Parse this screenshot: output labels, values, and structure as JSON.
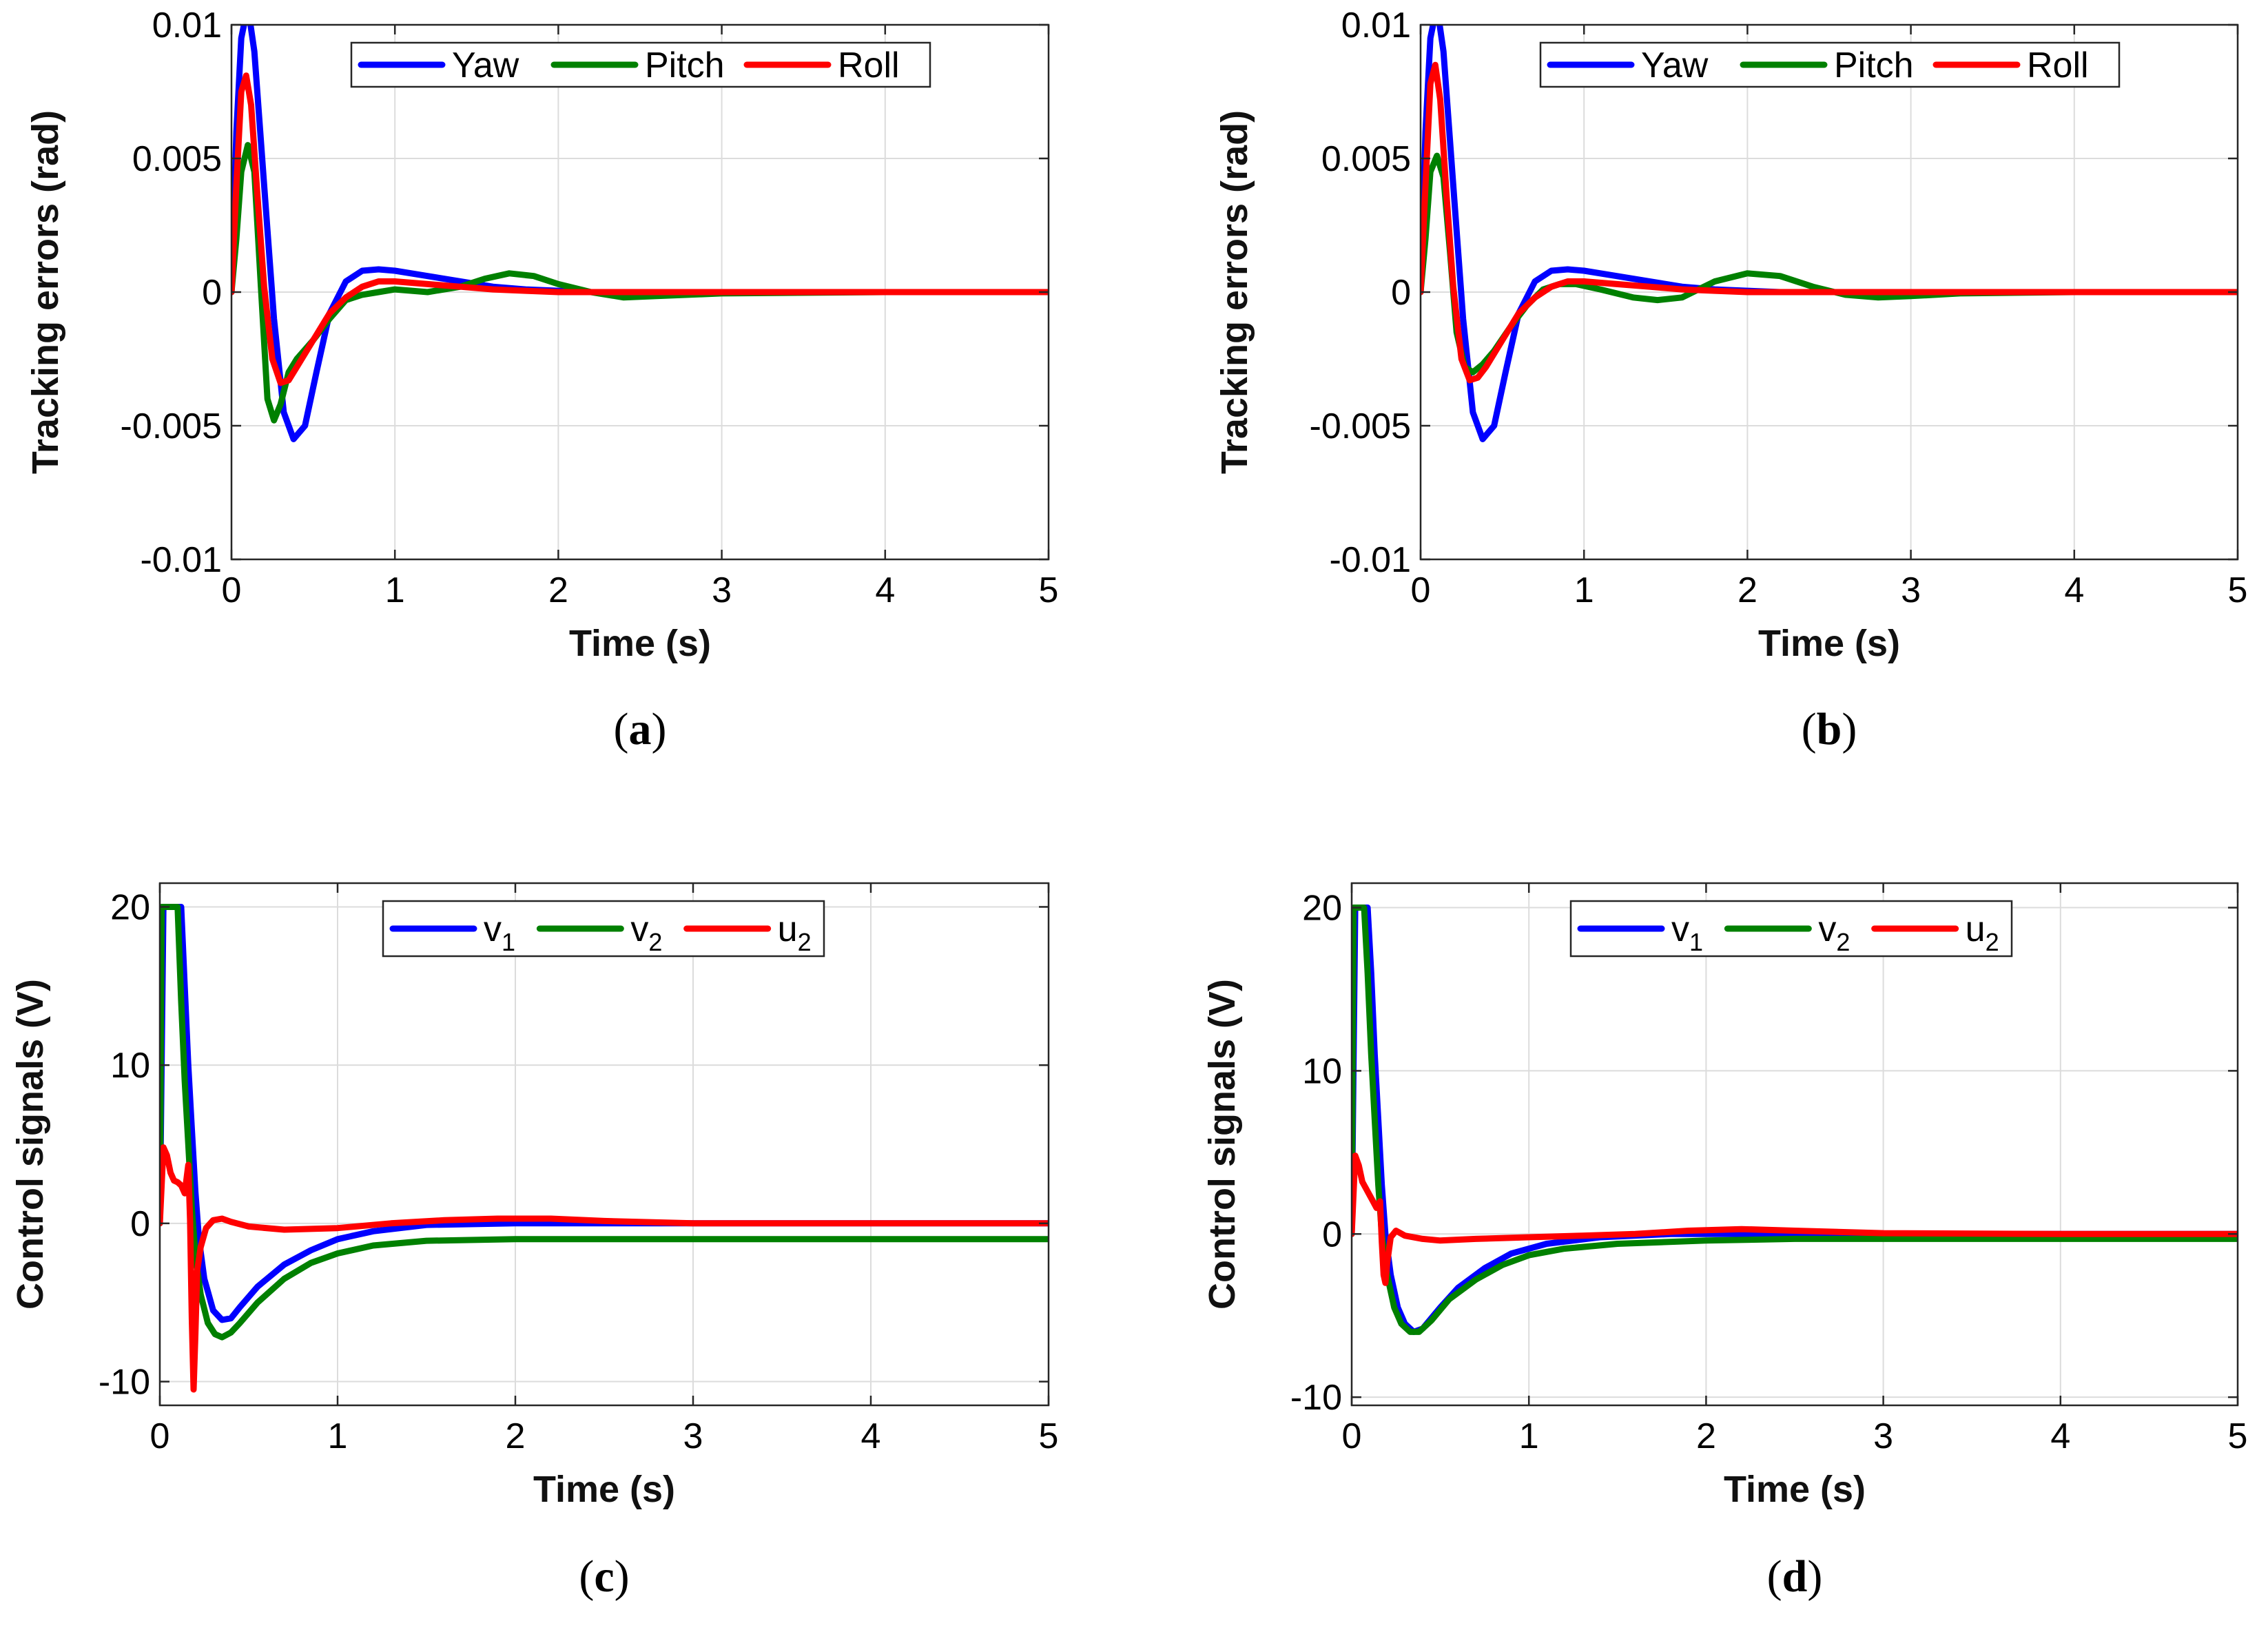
{
  "chart_data": [
    {
      "type": "line",
      "caption_letter": "a",
      "xlabel": "Time (s)",
      "ylabel": "Tracking errors (rad)",
      "xlim": [
        0,
        5
      ],
      "ylim": [
        -0.01,
        0.01
      ],
      "xticks": [
        0,
        1,
        2,
        3,
        4,
        5
      ],
      "xtick_labels": [
        "0",
        "1",
        "2",
        "3",
        "4",
        "5"
      ],
      "yticks": [
        -0.01,
        -0.005,
        0,
        0.005,
        0.01
      ],
      "ytick_labels": [
        "-0.01",
        "-0.005",
        "0",
        "0.005",
        "0.01"
      ],
      "grid": true,
      "legend_position": "top-center",
      "series": [
        {
          "name": "Yaw",
          "name_sub": "",
          "color": "#0000ff",
          "x": [
            0,
            0.03,
            0.06,
            0.1,
            0.14,
            0.2,
            0.26,
            0.32,
            0.38,
            0.45,
            0.52,
            0.6,
            0.7,
            0.8,
            0.9,
            1.0,
            1.2,
            1.4,
            1.6,
            1.8,
            2.0,
            2.2,
            2.5,
            3,
            4,
            5
          ],
          "y": [
            0,
            0.006,
            0.0095,
            0.0107,
            0.009,
            0.004,
            -0.001,
            -0.0045,
            -0.0055,
            -0.005,
            -0.003,
            -0.0008,
            0.0004,
            0.0008,
            0.00085,
            0.0008,
            0.0006,
            0.0004,
            0.0002,
            0.0001,
            5e-05,
            0,
            0,
            0,
            0,
            0
          ]
        },
        {
          "name": "Pitch",
          "name_sub": "",
          "color": "#008000",
          "x": [
            0,
            0.03,
            0.06,
            0.1,
            0.14,
            0.18,
            0.22,
            0.26,
            0.3,
            0.35,
            0.4,
            0.5,
            0.6,
            0.7,
            0.8,
            0.9,
            1.0,
            1.2,
            1.4,
            1.55,
            1.7,
            1.85,
            2.0,
            2.2,
            2.4,
            2.6,
            3.0,
            4,
            5
          ],
          "y": [
            0,
            0.002,
            0.0045,
            0.0055,
            0.0045,
            0.0002,
            -0.004,
            -0.0048,
            -0.0042,
            -0.003,
            -0.0025,
            -0.0018,
            -0.001,
            -0.0003,
            -0.0001,
            0,
            0.0001,
            0,
            0.0002,
            0.0005,
            0.0007,
            0.0006,
            0.0003,
            0,
            -0.0002,
            -0.00015,
            -5e-05,
            0,
            0
          ]
        },
        {
          "name": "Roll",
          "name_sub": "",
          "color": "#ff0000",
          "x": [
            0,
            0.03,
            0.06,
            0.09,
            0.12,
            0.16,
            0.2,
            0.25,
            0.3,
            0.35,
            0.4,
            0.5,
            0.6,
            0.7,
            0.8,
            0.9,
            1.0,
            1.2,
            1.4,
            1.6,
            1.8,
            2.0,
            2.5,
            3,
            4,
            5
          ],
          "y": [
            0,
            0.004,
            0.0075,
            0.0081,
            0.007,
            0.0035,
            0.0002,
            -0.0025,
            -0.0034,
            -0.0033,
            -0.0028,
            -0.0018,
            -0.0008,
            -0.0002,
            0.0002,
            0.0004,
            0.0004,
            0.0003,
            0.0002,
            0.0001,
            5e-05,
            0,
            0,
            0,
            0,
            0
          ]
        }
      ]
    },
    {
      "type": "line",
      "caption_letter": "b",
      "xlabel": "Time (s)",
      "ylabel": "Tracking errors (rad)",
      "xlim": [
        0,
        5
      ],
      "ylim": [
        -0.01,
        0.01
      ],
      "xticks": [
        0,
        1,
        2,
        3,
        4,
        5
      ],
      "xtick_labels": [
        "0",
        "1",
        "2",
        "3",
        "4",
        "5"
      ],
      "yticks": [
        -0.01,
        -0.005,
        0,
        0.005,
        0.01
      ],
      "ytick_labels": [
        "-0.01",
        "-0.005",
        "0",
        "0.005",
        "0.01"
      ],
      "grid": true,
      "legend_position": "top-center",
      "series": [
        {
          "name": "Yaw",
          "name_sub": "",
          "color": "#0000ff",
          "x": [
            0,
            0.03,
            0.06,
            0.1,
            0.14,
            0.2,
            0.26,
            0.32,
            0.38,
            0.45,
            0.52,
            0.6,
            0.7,
            0.8,
            0.9,
            1.0,
            1.2,
            1.4,
            1.6,
            1.8,
            2.0,
            2.2,
            2.5,
            3,
            4,
            5
          ],
          "y": [
            0,
            0.006,
            0.0095,
            0.0107,
            0.009,
            0.004,
            -0.001,
            -0.0045,
            -0.0055,
            -0.005,
            -0.003,
            -0.0008,
            0.0004,
            0.0008,
            0.00085,
            0.0008,
            0.0006,
            0.0004,
            0.0002,
            0.0001,
            5e-05,
            0,
            0,
            0,
            0,
            0
          ]
        },
        {
          "name": "Pitch",
          "name_sub": "",
          "color": "#008000",
          "x": [
            0,
            0.03,
            0.06,
            0.1,
            0.14,
            0.18,
            0.22,
            0.27,
            0.32,
            0.38,
            0.45,
            0.55,
            0.65,
            0.75,
            0.85,
            0.95,
            1.1,
            1.3,
            1.45,
            1.6,
            1.8,
            2.0,
            2.2,
            2.4,
            2.6,
            2.8,
            3.0,
            3.3,
            4,
            5
          ],
          "y": [
            0,
            0.002,
            0.0045,
            0.0051,
            0.0043,
            0.0015,
            -0.0015,
            -0.0028,
            -0.003,
            -0.0027,
            -0.0022,
            -0.0013,
            -0.0005,
            0.0001,
            0.0003,
            0.0003,
            0.0001,
            -0.0002,
            -0.0003,
            -0.0002,
            0.0004,
            0.0007,
            0.0006,
            0.0002,
            -0.0001,
            -0.0002,
            -0.00015,
            -5e-05,
            0,
            0
          ]
        },
        {
          "name": "Roll",
          "name_sub": "",
          "color": "#ff0000",
          "x": [
            0,
            0.03,
            0.06,
            0.09,
            0.12,
            0.16,
            0.2,
            0.25,
            0.3,
            0.35,
            0.4,
            0.5,
            0.6,
            0.7,
            0.8,
            0.9,
            1.0,
            1.2,
            1.4,
            1.6,
            1.8,
            2.0,
            2.5,
            3,
            4,
            5
          ],
          "y": [
            0,
            0.004,
            0.0078,
            0.0085,
            0.0072,
            0.0035,
            0.0002,
            -0.0025,
            -0.0033,
            -0.0032,
            -0.0028,
            -0.0018,
            -0.0008,
            -0.0002,
            0.0002,
            0.0004,
            0.0004,
            0.0003,
            0.0002,
            0.0001,
            5e-05,
            0,
            0,
            0,
            0,
            0
          ]
        }
      ]
    },
    {
      "type": "line",
      "caption_letter": "c",
      "xlabel": "Time (s)",
      "ylabel": "Control signals (V)",
      "xlim": [
        0,
        5
      ],
      "ylim": [
        -11.5,
        21.5
      ],
      "xticks": [
        0,
        1,
        2,
        3,
        4,
        5
      ],
      "xtick_labels": [
        "0",
        "1",
        "2",
        "3",
        "4",
        "5"
      ],
      "yticks": [
        -10,
        0,
        10,
        20
      ],
      "ytick_labels": [
        "-10",
        "0",
        "10",
        "20"
      ],
      "grid": true,
      "legend_position": "top-center",
      "series": [
        {
          "name": "v",
          "name_sub": "1",
          "color": "#0000ff",
          "x": [
            0,
            0.02,
            0.04,
            0.12,
            0.14,
            0.16,
            0.18,
            0.2,
            0.22,
            0.25,
            0.3,
            0.35,
            0.4,
            0.45,
            0.55,
            0.7,
            0.85,
            1.0,
            1.2,
            1.5,
            2.0,
            2.5,
            3,
            4,
            5
          ],
          "y": [
            0,
            20,
            20,
            20,
            15,
            10,
            6,
            2,
            -1,
            -3.5,
            -5.5,
            -6.1,
            -6,
            -5.3,
            -4,
            -2.6,
            -1.7,
            -1,
            -0.5,
            -0.1,
            0,
            0,
            0,
            0,
            0
          ]
        },
        {
          "name": "v",
          "name_sub": "2",
          "color": "#008000",
          "x": [
            0,
            0.01,
            0.02,
            0.1,
            0.12,
            0.14,
            0.16,
            0.18,
            0.2,
            0.23,
            0.27,
            0.31,
            0.35,
            0.4,
            0.45,
            0.55,
            0.7,
            0.85,
            1.0,
            1.2,
            1.5,
            2.0,
            2.5,
            3,
            4,
            5
          ],
          "y": [
            0,
            20,
            20,
            20,
            14,
            9,
            5,
            1,
            -2,
            -4.5,
            -6.3,
            -7,
            -7.2,
            -6.9,
            -6.3,
            -5,
            -3.5,
            -2.5,
            -1.9,
            -1.4,
            -1.1,
            -1,
            -1,
            -1,
            -1,
            -1
          ]
        },
        {
          "name": "u",
          "name_sub": "2",
          "color": "#ff0000",
          "x": [
            0,
            0.02,
            0.04,
            0.06,
            0.08,
            0.1,
            0.12,
            0.14,
            0.16,
            0.17,
            0.18,
            0.19,
            0.2,
            0.21,
            0.23,
            0.26,
            0.3,
            0.35,
            0.4,
            0.5,
            0.7,
            1.0,
            1.3,
            1.6,
            1.9,
            2.2,
            2.5,
            3,
            4,
            5
          ],
          "y": [
            0,
            4.8,
            4.3,
            3.2,
            2.7,
            2.6,
            2.4,
            1.9,
            3.7,
            0.2,
            -6,
            -10.5,
            -7,
            -3,
            -1.5,
            -0.3,
            0.2,
            0.3,
            0.1,
            -0.2,
            -0.4,
            -0.3,
            0,
            0.2,
            0.3,
            0.3,
            0.15,
            0,
            0,
            0
          ]
        }
      ]
    },
    {
      "type": "line",
      "caption_letter": "d",
      "xlabel": "Time (s)",
      "ylabel": "Control signals (V)",
      "xlim": [
        0,
        5
      ],
      "ylim": [
        -10.5,
        21.5
      ],
      "xticks": [
        0,
        1,
        2,
        3,
        4,
        5
      ],
      "xtick_labels": [
        "0",
        "1",
        "2",
        "3",
        "4",
        "5"
      ],
      "yticks": [
        -10,
        0,
        10,
        20
      ],
      "ytick_labels": [
        "-10",
        "0",
        "10",
        "20"
      ],
      "grid": true,
      "legend_position": "top-center",
      "series": [
        {
          "name": "v",
          "name_sub": "1",
          "color": "#0000ff",
          "x": [
            0,
            0.02,
            0.04,
            0.09,
            0.11,
            0.13,
            0.15,
            0.17,
            0.19,
            0.22,
            0.26,
            0.3,
            0.35,
            0.4,
            0.5,
            0.6,
            0.75,
            0.9,
            1.1,
            1.4,
            1.8,
            2.2,
            3,
            4,
            5
          ],
          "y": [
            0,
            20,
            20,
            20,
            16,
            11,
            7,
            3,
            0,
            -2.5,
            -4.5,
            -5.5,
            -6,
            -5.8,
            -4.5,
            -3.3,
            -2.1,
            -1.2,
            -0.6,
            -0.2,
            0,
            0,
            0,
            0,
            0
          ]
        },
        {
          "name": "v",
          "name_sub": "2",
          "color": "#008000",
          "x": [
            0,
            0.01,
            0.02,
            0.07,
            0.09,
            0.11,
            0.13,
            0.15,
            0.17,
            0.2,
            0.24,
            0.28,
            0.33,
            0.38,
            0.45,
            0.55,
            0.7,
            0.85,
            1.0,
            1.2,
            1.5,
            2.0,
            2.5,
            3,
            4,
            5
          ],
          "y": [
            0,
            20,
            20,
            20,
            16,
            11,
            7,
            3,
            0,
            -2.5,
            -4.5,
            -5.5,
            -6,
            -6,
            -5.3,
            -4,
            -2.8,
            -1.9,
            -1.3,
            -0.9,
            -0.6,
            -0.4,
            -0.3,
            -0.3,
            -0.3,
            -0.3
          ]
        },
        {
          "name": "u",
          "name_sub": "2",
          "color": "#ff0000",
          "x": [
            0,
            0.02,
            0.04,
            0.06,
            0.08,
            0.1,
            0.12,
            0.14,
            0.16,
            0.17,
            0.18,
            0.19,
            0.2,
            0.22,
            0.25,
            0.3,
            0.4,
            0.5,
            0.7,
            1.0,
            1.3,
            1.6,
            1.9,
            2.2,
            2.5,
            3,
            4,
            5
          ],
          "y": [
            0,
            4.8,
            4.2,
            3.2,
            2.8,
            2.4,
            2.0,
            1.6,
            2.0,
            -0.5,
            -2.5,
            -3,
            -1.8,
            -0.2,
            0.2,
            -0.1,
            -0.3,
            -0.4,
            -0.3,
            -0.2,
            -0.1,
            0,
            0.2,
            0.3,
            0.2,
            0.05,
            0,
            0
          ]
        }
      ]
    }
  ]
}
